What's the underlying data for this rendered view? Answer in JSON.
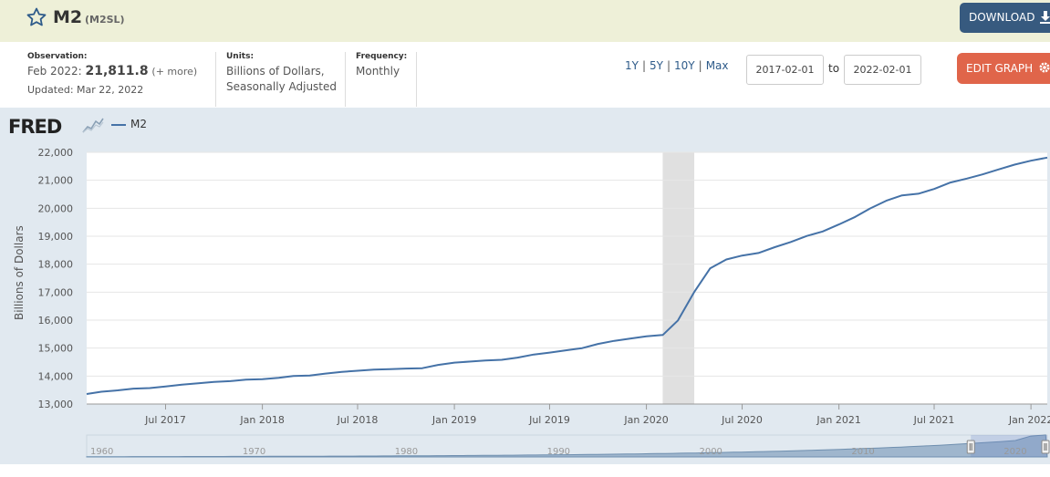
{
  "series": {
    "title": "M2",
    "id": "(M2SL)"
  },
  "header": {
    "download_label": "DOWNLOAD"
  },
  "observation": {
    "label": "Observation:",
    "date": "Feb 2022:",
    "value": "21,811.8",
    "more": "(+ more)",
    "updated": "Updated: Mar 22, 2022"
  },
  "units": {
    "label": "Units:",
    "line1": "Billions of Dollars,",
    "line2": "Seasonally Adjusted"
  },
  "frequency": {
    "label": "Frequency:",
    "value": "Monthly"
  },
  "range": {
    "links": [
      "1Y",
      "5Y",
      "10Y",
      "Max"
    ],
    "start": "2017-02-01",
    "to_label": "to",
    "end": "2022-02-01"
  },
  "edit_label": "EDIT GRAPH",
  "logo": {
    "text": "FRED"
  },
  "colors": {
    "line": "#4572a7",
    "recession": "#e0e0e0",
    "panel": "#e1e9f0",
    "download": "#375a7f",
    "edit": "#e0654a"
  },
  "chart_data": {
    "type": "line",
    "ylabel": "Billions of Dollars",
    "ylim": [
      13000,
      22000
    ],
    "yticks": [
      "13,000",
      "14,000",
      "15,000",
      "16,000",
      "17,000",
      "18,000",
      "19,000",
      "20,000",
      "21,000",
      "22,000"
    ],
    "xticks": [
      "Jul 2017",
      "Jan 2018",
      "Jul 2018",
      "Jan 2019",
      "Jul 2019",
      "Jan 2020",
      "Jul 2020",
      "Jan 2021",
      "Jul 2021",
      "Jan 2022"
    ],
    "grid": true,
    "recession": [
      "2020-02",
      "2020-04"
    ],
    "series": [
      {
        "name": "M2",
        "x": [
          "2017-02",
          "2017-03",
          "2017-04",
          "2017-05",
          "2017-06",
          "2017-07",
          "2017-08",
          "2017-09",
          "2017-10",
          "2017-11",
          "2017-12",
          "2018-01",
          "2018-02",
          "2018-03",
          "2018-04",
          "2018-05",
          "2018-06",
          "2018-07",
          "2018-08",
          "2018-09",
          "2018-10",
          "2018-11",
          "2018-12",
          "2019-01",
          "2019-02",
          "2019-03",
          "2019-04",
          "2019-05",
          "2019-06",
          "2019-07",
          "2019-08",
          "2019-09",
          "2019-10",
          "2019-11",
          "2019-12",
          "2020-01",
          "2020-02",
          "2020-03",
          "2020-04",
          "2020-05",
          "2020-06",
          "2020-07",
          "2020-08",
          "2020-09",
          "2020-10",
          "2020-11",
          "2020-12",
          "2021-01",
          "2021-02",
          "2021-03",
          "2021-04",
          "2021-05",
          "2021-06",
          "2021-07",
          "2021-08",
          "2021-09",
          "2021-10",
          "2021-11",
          "2021-12",
          "2022-01",
          "2022-02"
        ],
        "values": [
          13360,
          13440,
          13490,
          13550,
          13570,
          13630,
          13690,
          13740,
          13790,
          13820,
          13870,
          13890,
          13940,
          14000,
          14020,
          14090,
          14150,
          14190,
          14230,
          14250,
          14270,
          14280,
          14400,
          14480,
          14520,
          14560,
          14580,
          14660,
          14770,
          14840,
          14920,
          15000,
          15150,
          15260,
          15340,
          15420,
          15470,
          15990,
          17010,
          17850,
          18170,
          18310,
          18400,
          18610,
          18790,
          19010,
          19170,
          19420,
          19690,
          19990,
          20270,
          20460,
          20520,
          20690,
          20920,
          21060,
          21210,
          21390,
          21560,
          21700,
          21811.8
        ]
      }
    ]
  },
  "navigator": {
    "labels": [
      "1960",
      "1970",
      "1980",
      "1990",
      "2000",
      "2010",
      "2020"
    ]
  }
}
